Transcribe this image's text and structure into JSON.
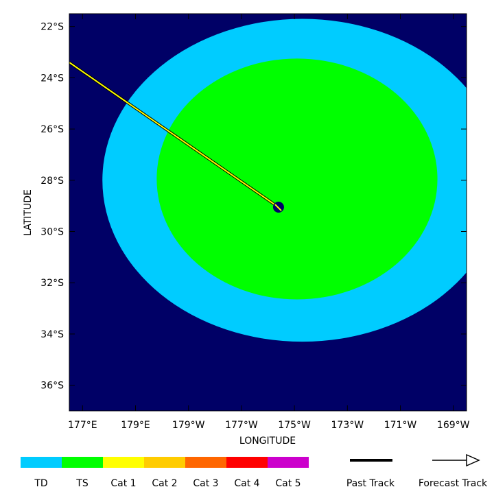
{
  "map": {
    "x_axis_label": "LONGITUDE",
    "y_axis_label": "LATITUDE",
    "lon_range": [
      176.5,
      -168.5
    ],
    "lat_range": [
      -21.5,
      -37.0
    ],
    "lon_ticks": [
      {
        "value": 177,
        "label": "177°E"
      },
      {
        "value": 179,
        "label": "179°E"
      },
      {
        "value": -179,
        "label": "179°W"
      },
      {
        "value": -177,
        "label": "177°W"
      },
      {
        "value": -175,
        "label": "175°W"
      },
      {
        "value": -173,
        "label": "173°W"
      },
      {
        "value": -171,
        "label": "171°W"
      },
      {
        "value": -169,
        "label": "169°W"
      }
    ],
    "lat_ticks": [
      {
        "value": -22,
        "label": "22°S"
      },
      {
        "value": -24,
        "label": "24°S"
      },
      {
        "value": -26,
        "label": "26°S"
      },
      {
        "value": -28,
        "label": "28°S"
      },
      {
        "value": -30,
        "label": "30°S"
      },
      {
        "value": -32,
        "label": "32°S"
      },
      {
        "value": -34,
        "label": "34°S"
      },
      {
        "value": -36,
        "label": "36°S"
      }
    ],
    "colors": {
      "background": "#000066",
      "td_zone": "#00ccff",
      "ts_zone": "#00ff00",
      "forecast_track": "#ffff00",
      "storm_center": "#000066"
    },
    "wind_zones": [
      {
        "category": "TD",
        "center_lon": -174.7,
        "center_lat": -28.0,
        "lon_radius": 7.55,
        "lat_radius": 6.3
      },
      {
        "category": "TS",
        "center_lon": -174.9,
        "center_lat": -27.95,
        "lon_radius": 5.3,
        "lat_radius": 4.7
      }
    ],
    "storm_position": {
      "lon": -175.6,
      "lat": -29.05
    },
    "track_points": [
      {
        "lon": 176.5,
        "lat": -23.4
      },
      {
        "lon": -175.6,
        "lat": -29.05
      }
    ]
  },
  "legend": {
    "categories": [
      {
        "label": "TD",
        "color": "#00ccff"
      },
      {
        "label": "TS",
        "color": "#00ff00"
      },
      {
        "label": "Cat 1",
        "color": "#ffff00"
      },
      {
        "label": "Cat 2",
        "color": "#ffcc00"
      },
      {
        "label": "Cat 3",
        "color": "#ff6600"
      },
      {
        "label": "Cat 4",
        "color": "#ff0000"
      },
      {
        "label": "Cat 5",
        "color": "#cc00cc"
      }
    ],
    "past_track_label": "Past Track",
    "forecast_track_label": "Forecast Track"
  }
}
